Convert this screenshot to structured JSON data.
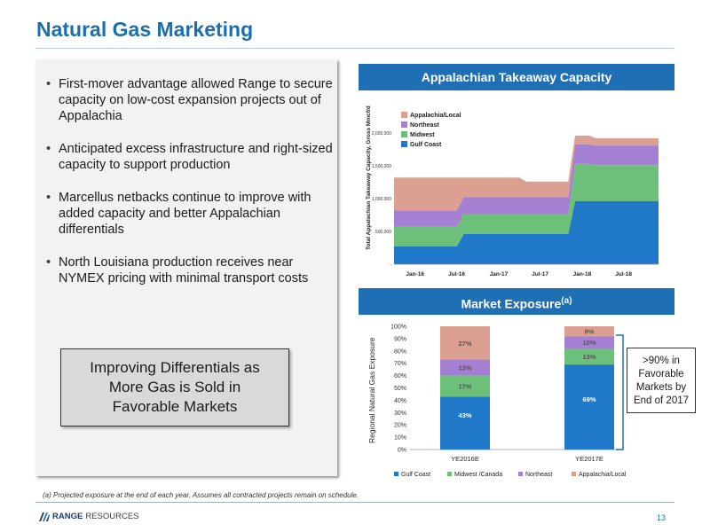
{
  "title": "Natural Gas Marketing",
  "bullets": [
    "First-mover advantage allowed Range to secure capacity on low-cost expansion projects out of Appalachia",
    "Anticipated excess infrastructure and right-sized capacity to support production",
    "Marcellus netbacks continue to improve with added capacity and better Appalachian differentials",
    "North Louisiana production receives near NYMEX pricing with minimal transport costs"
  ],
  "callout": {
    "line1": "Improving Differentials as",
    "line2": "More Gas is Sold in",
    "line3": "Favorable Markets"
  },
  "favorable_note": {
    "line1": ">90% in",
    "line2": "Favorable",
    "line3": "Markets by",
    "line4": "End of 2017"
  },
  "footnote": "(a) Projected exposure at the end of each year.  Assumes all contracted projects remain on schedule.",
  "logo_text": "RANGE",
  "logo_text2": "RESOURCES",
  "page_number": "13",
  "colors": {
    "accent": "#1f6fb5",
    "gulf_coast": "#1f78c8",
    "midwest": "#6cc07a",
    "northeast": "#a57fd1",
    "appalachia": "#dba091"
  },
  "chart_data": [
    {
      "type": "area",
      "stacked": true,
      "title": "Appalachian Takeaway Capacity",
      "ylabel": "Total Appalachian Takeaway Capacity, Gross Mmcf/d",
      "ylim": [
        0,
        2000000
      ],
      "yticks": [
        0,
        500000,
        1000000,
        1500000,
        2000000
      ],
      "ytick_labels": [
        "-",
        "500,000",
        "1,000,000",
        "1,500,000",
        "2,000,000"
      ],
      "xtick_labels": [
        "Jan-16",
        "Jul-16",
        "Jan-17",
        "Jul-17",
        "Jan-18",
        "Jul-18"
      ],
      "x": [
        "2015-10",
        "2016-07",
        "2016-08",
        "2017-04",
        "2017-05",
        "2017-11",
        "2017-12",
        "2018-02",
        "2018-03",
        "2018-12"
      ],
      "legend": "top-left",
      "series": [
        {
          "name": "Gulf Coast",
          "values": [
            270000,
            270000,
            460000,
            460000,
            460000,
            460000,
            960000,
            960000,
            960000,
            960000
          ]
        },
        {
          "name": "Midwest",
          "values": [
            300000,
            300000,
            310000,
            310000,
            310000,
            310000,
            570000,
            570000,
            550000,
            550000
          ]
        },
        {
          "name": "Northeast",
          "values": [
            250000,
            250000,
            250000,
            250000,
            250000,
            250000,
            300000,
            300000,
            300000,
            300000
          ]
        },
        {
          "name": "Appalachia/Local",
          "values": [
            500000,
            500000,
            300000,
            300000,
            240000,
            240000,
            130000,
            130000,
            110000,
            110000
          ]
        }
      ]
    },
    {
      "type": "bar",
      "stacked": true,
      "title": "Market Exposure",
      "title_superscript": "(a)",
      "ylabel": "Regional Natural Gas Exposure",
      "ylim": [
        0,
        100
      ],
      "ytick_labels": [
        "0%",
        "10%",
        "20%",
        "30%",
        "40%",
        "50%",
        "60%",
        "70%",
        "80%",
        "90%",
        "100%"
      ],
      "categories": [
        "YE2016E",
        "YE2017E"
      ],
      "legend": "bottom",
      "series": [
        {
          "name": "Gulf Coast",
          "values": [
            43,
            69
          ],
          "labels": [
            "43%",
            "69%"
          ]
        },
        {
          "name": "Midwest /Canada",
          "values": [
            17,
            13
          ],
          "labels": [
            "17%",
            "13%"
          ]
        },
        {
          "name": "Northeast",
          "values": [
            13,
            10
          ],
          "labels": [
            "13%",
            "10%"
          ]
        },
        {
          "name": "Appalachia/Local",
          "values": [
            27,
            8
          ],
          "labels": [
            "27%",
            "8%"
          ]
        }
      ]
    }
  ]
}
